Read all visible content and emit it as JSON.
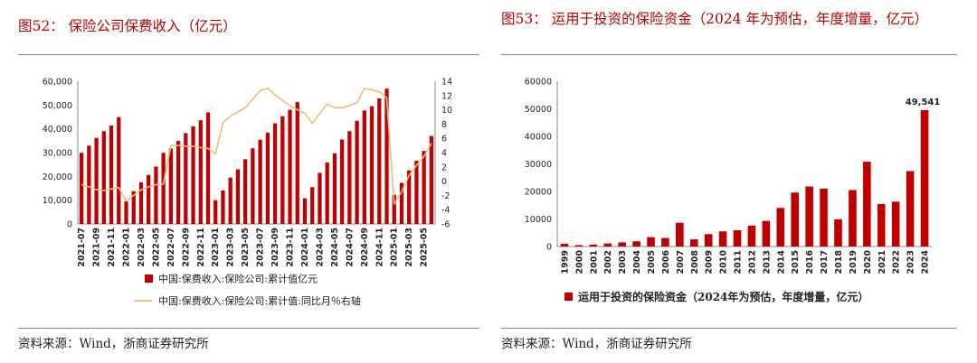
{
  "left": {
    "title": "图52： 保险公司保费收入（亿元）",
    "source": "资料来源：Wind，浙商证券研究所"
  },
  "right": {
    "title": "图53： 运用于投资的保险资金（2024 年为预估，年度增量，亿元）",
    "source": "资料来源：Wind，浙商证券研究所"
  },
  "chart_data": [
    {
      "type": "bar",
      "combo_line_right_axis": true,
      "x": [
        "2021-07",
        "2021-08",
        "2021-09",
        "2021-10",
        "2021-11",
        "2021-12",
        "2022-01",
        "2022-02",
        "2022-03",
        "2022-04",
        "2022-05",
        "2022-06",
        "2022-07",
        "2022-08",
        "2022-09",
        "2022-10",
        "2022-11",
        "2022-12",
        "2023-01",
        "2023-02",
        "2023-03",
        "2023-04",
        "2023-05",
        "2023-06",
        "2023-07",
        "2023-08",
        "2023-09",
        "2023-10",
        "2023-11",
        "2023-12",
        "2024-01",
        "2024-02",
        "2024-03",
        "2024-04",
        "2024-05",
        "2024-06",
        "2024-07",
        "2024-08",
        "2024-09",
        "2024-10",
        "2024-11",
        "2024-12",
        "2025-01",
        "2025-02",
        "2025-03",
        "2025-04",
        "2025-05",
        "2025-06"
      ],
      "x_tick_labels": [
        "2021-07",
        "2021-09",
        "2021-11",
        "2022-01",
        "2022-03",
        "2022-05",
        "2022-07",
        "2022-09",
        "2022-11",
        "2023-01",
        "2023-03",
        "2023-05",
        "2023-07",
        "2023-09",
        "2023-11",
        "2024-01",
        "2024-03",
        "2024-05",
        "2024-07",
        "2024-09",
        "2024-11",
        "2025-01",
        "2025-03",
        "2025-05"
      ],
      "series": [
        {
          "name": "中国:保费收入:保险公司:累计值亿元",
          "axis": "left",
          "color": "#c00000",
          "values": [
            29900,
            32900,
            36200,
            39000,
            41400,
            44900,
            9500,
            13800,
            17500,
            20600,
            24100,
            29900,
            31700,
            34900,
            38200,
            41000,
            43600,
            46900,
            10000,
            14100,
            19500,
            23000,
            27200,
            31800,
            35400,
            38400,
            42300,
            45300,
            48000,
            51200,
            10800,
            15500,
            21500,
            25800,
            29700,
            35500,
            39000,
            43400,
            47700,
            49500,
            52800,
            56900,
            12300,
            17300,
            22500,
            26600,
            30700,
            37000
          ]
        },
        {
          "name": "中国:保费收入:保险公司:累计值:同比月％右轴",
          "axis": "right",
          "color": "#e5c07b",
          "values": [
            -0.5,
            -0.8,
            -1.2,
            -1.3,
            -1.1,
            -0.9,
            -2.8,
            -2.0,
            -1.2,
            -0.8,
            -0.5,
            -0.4,
            5.0,
            5.0,
            4.9,
            4.9,
            4.7,
            4.6,
            3.8,
            8.2,
            9.1,
            9.7,
            10.3,
            11.5,
            12.7,
            13.0,
            12.1,
            11.3,
            10.6,
            10.0,
            9.5,
            8.1,
            9.5,
            10.8,
            10.3,
            10.3,
            10.6,
            11.0,
            13.0,
            12.8,
            12.5,
            11.7,
            -3.2,
            -1.5,
            0.8,
            2.2,
            3.5,
            5.3
          ]
        }
      ],
      "ylim_left": [
        0,
        60000
      ],
      "yticks_left": [
        0,
        10000,
        20000,
        30000,
        40000,
        50000,
        60000
      ],
      "ytick_labels_left": [
        "0",
        "10,000",
        "20,000",
        "30,000",
        "40,000",
        "50,000",
        "60,000"
      ],
      "ylim_right": [
        -6,
        14
      ],
      "yticks_right": [
        -6,
        -4,
        -2,
        0,
        2,
        4,
        6,
        8,
        10,
        12,
        14
      ],
      "legend_position": "bottom",
      "grid": false
    },
    {
      "type": "bar",
      "categories": [
        "1999",
        "2000",
        "2001",
        "2002",
        "2003",
        "2004",
        "2005",
        "2006",
        "2007",
        "2008",
        "2009",
        "2010",
        "2011",
        "2012",
        "2013",
        "2014",
        "2015",
        "2016",
        "2017",
        "2018",
        "2019",
        "2020",
        "2021",
        "2022",
        "2023",
        "2024"
      ],
      "series": [
        {
          "name": "运用于投资的保险资金（2024年为预估，年度增量，亿元）",
          "color": "#c00000",
          "values": [
            1000,
            500,
            700,
            1100,
            1500,
            1900,
            3400,
            3100,
            8600,
            2600,
            4500,
            5500,
            5900,
            7600,
            9300,
            14000,
            19600,
            21800,
            21000,
            9900,
            20500,
            30800,
            15400,
            16300,
            27400,
            49541
          ]
        }
      ],
      "data_labels": [
        {
          "category": "2024",
          "text": "49,541"
        }
      ],
      "ylim": [
        0,
        60000
      ],
      "yticks": [
        0,
        10000,
        20000,
        30000,
        40000,
        50000,
        60000
      ],
      "legend_position": "bottom",
      "grid": false
    }
  ]
}
